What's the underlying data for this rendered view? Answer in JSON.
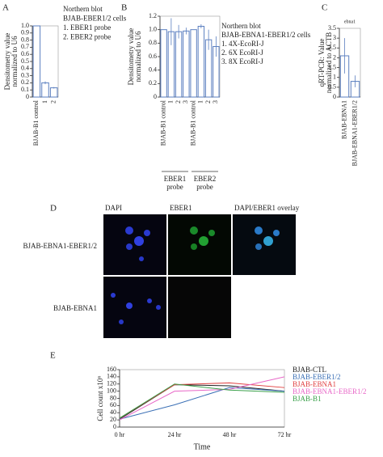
{
  "chart_data": [
    {
      "type": "bar",
      "panel": "A",
      "ylabel": [
        "Densitometry value",
        "normalized to U6"
      ],
      "categories": [
        "BJAB-B1 control",
        "1",
        "2"
      ],
      "values": [
        1.0,
        0.2,
        0.13
      ],
      "errors": [
        0,
        0.02,
        0.01
      ],
      "color": "#5b7fc0",
      "ylim": [
        0,
        1
      ],
      "yticks": [
        0,
        0.1,
        0.2,
        0.3,
        0.4,
        0.5,
        0.6,
        0.7,
        0.8,
        0.9,
        {
          "value": 1,
          "label": "1.0"
        }
      ],
      "legend_text": [
        "Northern blot",
        "BJAB-EBER1/2 cells",
        "1. EBER1 probe",
        "2. EBER2 probe"
      ]
    },
    {
      "type": "bar",
      "panel": "B",
      "ylabel": [
        "Densitometry value",
        "normalized to U6"
      ],
      "categories": [
        "BJAB-B1 control",
        "1",
        "2",
        "3",
        "BJAB-B1 control",
        "1",
        "2",
        "3"
      ],
      "values": [
        1.0,
        0.97,
        0.97,
        0.98,
        1.0,
        1.05,
        0.85,
        0.75
      ],
      "errors": [
        0,
        0.2,
        0.1,
        0.05,
        0,
        0.03,
        0.15,
        0.15
      ],
      "color": "#5b7fc0",
      "ylim": [
        0,
        1.2
      ],
      "yticks": [
        0,
        0.2,
        0.4,
        0.6,
        0.8,
        {
          "value": 1,
          "label": "1.0"
        },
        1.2
      ],
      "groups": [
        [
          "EBER1",
          "probe"
        ],
        [
          "EBER2",
          "probe"
        ]
      ],
      "legend_text": [
        "Northern blot",
        "BJAB-EBNA1-EBER1/2 cells",
        "1. 4X-EcoRI-J",
        "2. 6X EcoRI-J",
        "3. 8X EcoRI-J"
      ]
    },
    {
      "type": "bar",
      "panel": "C",
      "title": "ebna1",
      "ylabel": [
        "qRT-PCR: Value",
        "normalized to ACTB"
      ],
      "categories": [
        "BJAB-EBNA1",
        "BJAB-EBNA1-EBER1/2"
      ],
      "values": [
        2.1,
        0.8
      ],
      "errors": [
        0.9,
        0.3
      ],
      "color": "#5b7fc0",
      "ylim": [
        0,
        3.5
      ],
      "yticks": [
        0,
        0.5,
        1,
        1.5,
        2,
        2.5,
        3,
        3.5
      ]
    },
    {
      "type": "line",
      "panel": "E",
      "xlabel": "Time",
      "ylabel": [
        "Cell count x10⁶"
      ],
      "categories": [
        "0 hr",
        "24 hr",
        "48 hr",
        "72 hr"
      ],
      "ylim": [
        0,
        160
      ],
      "yticks": [
        0,
        20,
        40,
        60,
        80,
        100,
        120,
        140,
        160
      ],
      "series": [
        {
          "name": "BJAB-CTL",
          "color": "#222222",
          "values": [
            22,
            118,
            115,
            100
          ]
        },
        {
          "name": "BJAB-EBER1/2",
          "color": "#3a6fb5",
          "values": [
            22,
            62,
            110,
            100
          ]
        },
        {
          "name": "BJAB-EBNA1",
          "color": "#e04040",
          "values": [
            25,
            118,
            123,
            110
          ]
        },
        {
          "name": "BJAB-EBNA1-EBER1/2",
          "color": "#e868c8",
          "values": [
            20,
            100,
            105,
            140
          ]
        },
        {
          "name": "BJAB-B1",
          "color": "#3aa04a",
          "values": [
            25,
            120,
            103,
            97
          ]
        }
      ]
    }
  ],
  "image_panel": {
    "panel": "D",
    "columns": [
      "DAPI",
      "EBER1",
      "DAPI/EBER1 overlay"
    ],
    "rows": [
      "BJAB-EBNA1-EBER1/2",
      "BJAB-EBNA1"
    ]
  }
}
